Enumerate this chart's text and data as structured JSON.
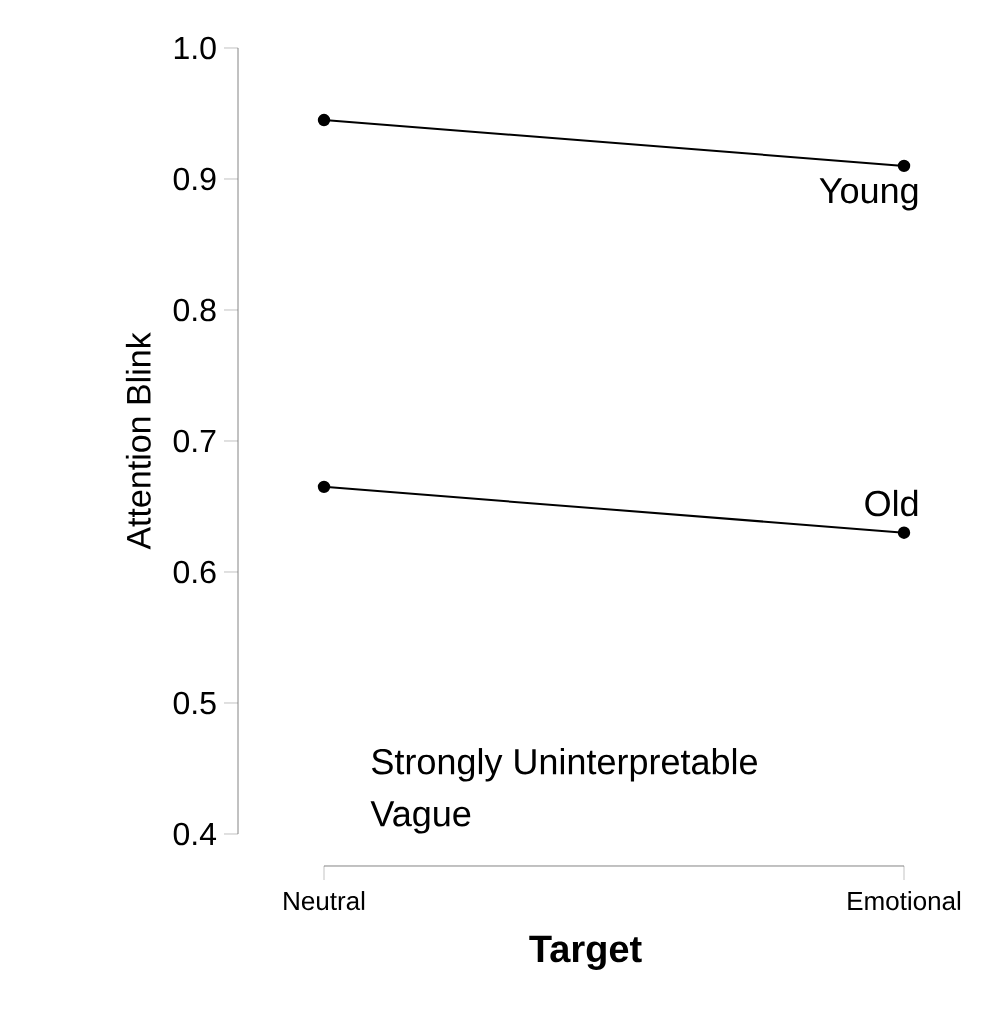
{
  "chart_data": {
    "type": "line",
    "xlabel": "Target",
    "ylabel": "Attention Blink",
    "categories": [
      "Neutral",
      "Emotional"
    ],
    "series": [
      {
        "name": "Young",
        "color": "#000000",
        "values": [
          0.945,
          0.91
        ]
      },
      {
        "name": "Old",
        "color": "#000000",
        "values": [
          0.665,
          0.63
        ]
      }
    ],
    "ylim": [
      0.4,
      1
    ],
    "yticks": [
      0.4,
      0.5,
      0.6,
      0.7,
      0.8,
      0.9,
      {
        "value": 1,
        "label": "1.0"
      }
    ],
    "annotations": [
      "Strongly Uninterpretable",
      "Vague"
    ],
    "grid": false,
    "marker": "circle",
    "line_style": "solid"
  }
}
